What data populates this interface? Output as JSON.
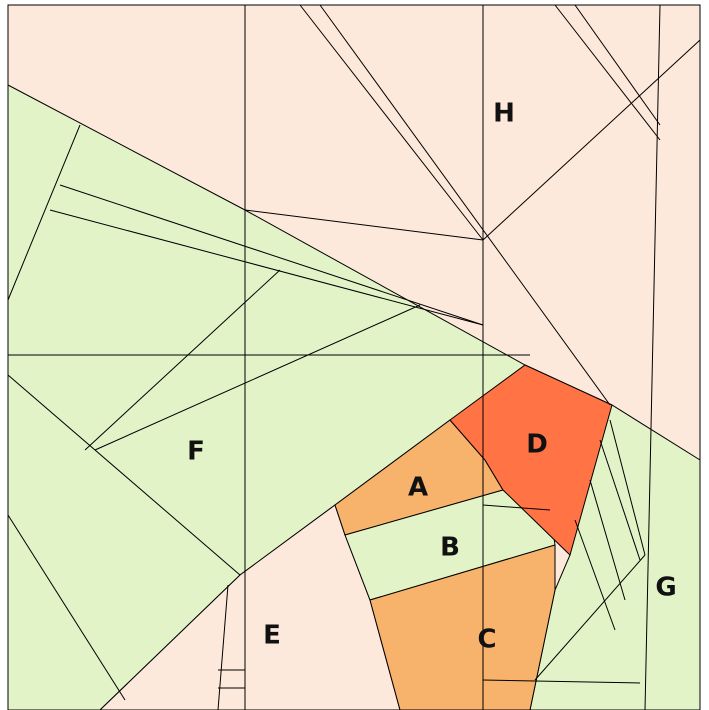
{
  "labels": [
    "A",
    "B",
    "C",
    "D",
    "E",
    "F",
    "G",
    "H"
  ]
}
